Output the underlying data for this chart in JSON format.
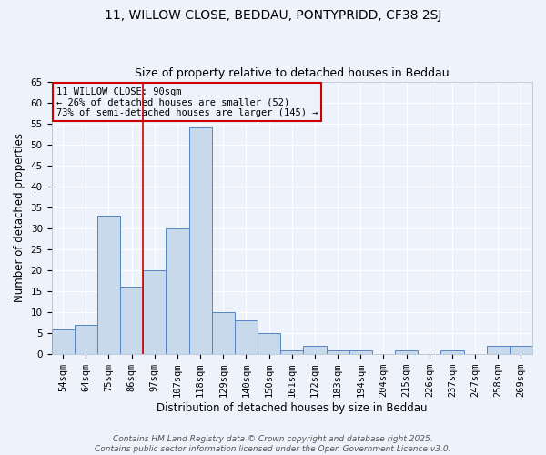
{
  "title_line1": "11, WILLOW CLOSE, BEDDAU, PONTYPRIDD, CF38 2SJ",
  "title_line2": "Size of property relative to detached houses in Beddau",
  "xlabel": "Distribution of detached houses by size in Beddau",
  "ylabel": "Number of detached properties",
  "categories": [
    "54sqm",
    "64sqm",
    "75sqm",
    "86sqm",
    "97sqm",
    "107sqm",
    "118sqm",
    "129sqm",
    "140sqm",
    "150sqm",
    "161sqm",
    "172sqm",
    "183sqm",
    "194sqm",
    "204sqm",
    "215sqm",
    "226sqm",
    "237sqm",
    "247sqm",
    "258sqm",
    "269sqm"
  ],
  "values": [
    6,
    7,
    33,
    16,
    20,
    30,
    54,
    10,
    8,
    5,
    1,
    2,
    1,
    1,
    0,
    1,
    0,
    1,
    0,
    2,
    2
  ],
  "bar_color": "#c9d9ec",
  "bar_edge_color": "#5585c5",
  "vline_x": 3.5,
  "vline_color": "#cc0000",
  "annotation_text": "11 WILLOW CLOSE: 90sqm\n← 26% of detached houses are smaller (52)\n73% of semi-detached houses are larger (145) →",
  "footer_line1": "Contains HM Land Registry data © Crown copyright and database right 2025.",
  "footer_line2": "Contains public sector information licensed under the Open Government Licence v3.0.",
  "ylim": [
    0,
    65
  ],
  "yticks": [
    0,
    5,
    10,
    15,
    20,
    25,
    30,
    35,
    40,
    45,
    50,
    55,
    60,
    65
  ],
  "background_color": "#eef2fa",
  "grid_color": "#ffffff",
  "title_fontsize": 10,
  "subtitle_fontsize": 9,
  "axis_label_fontsize": 8.5,
  "tick_fontsize": 7.5,
  "annotation_fontsize": 7.5,
  "footer_fontsize": 6.5
}
